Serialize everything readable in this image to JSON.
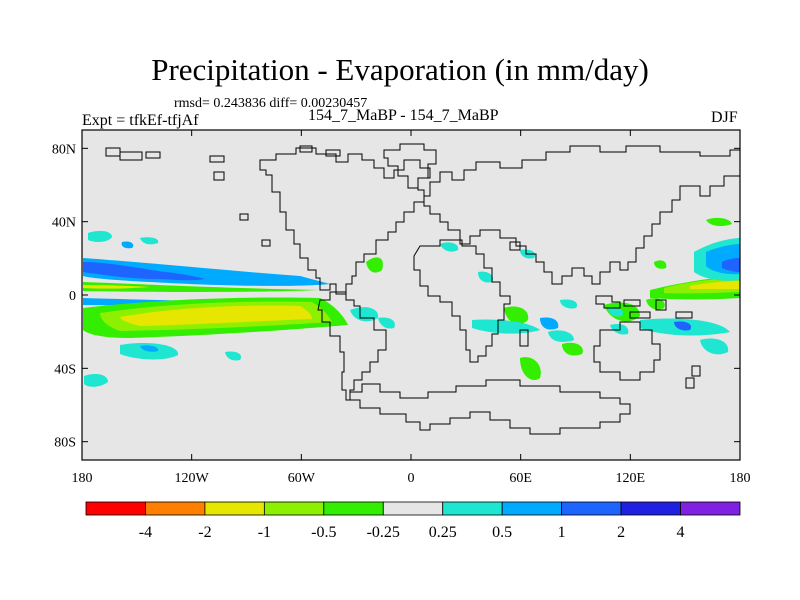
{
  "title": "Precipitation - Evaporation (in mm/day)",
  "stats": "rmsd= 0.243836 diff= 0.00230457",
  "experiment": "Expt = tfkEf-tfjAf",
  "runs": "154_7_MaBP - 154_7_MaBP",
  "season": "DJF",
  "map": {
    "background": "#e6e6e6",
    "projection": "cylindrical-equidistant",
    "lon_range": [
      -180,
      180
    ],
    "lat_range": [
      -90,
      90
    ],
    "x_ticks": [
      {
        "value": -180,
        "label": "180"
      },
      {
        "value": -120,
        "label": "120W"
      },
      {
        "value": -60,
        "label": "60W"
      },
      {
        "value": 0,
        "label": "0"
      },
      {
        "value": 60,
        "label": "60E"
      },
      {
        "value": 120,
        "label": "120E"
      },
      {
        "value": 180,
        "label": "180"
      }
    ],
    "y_ticks": [
      {
        "value": 80,
        "label": "80N"
      },
      {
        "value": 40,
        "label": "40N"
      },
      {
        "value": 0,
        "label": "0"
      },
      {
        "value": -40,
        "label": "40S"
      },
      {
        "value": -80,
        "label": "80S"
      }
    ]
  },
  "colorbar": {
    "colors": [
      "#ff0000",
      "#ff8000",
      "#e6e600",
      "#8cf000",
      "#33ee00",
      "#e6e6e6",
      "#1ee6d0",
      "#00aaff",
      "#1e64ff",
      "#2020e0",
      "#8020e0"
    ],
    "labels": [
      "-4",
      "-2",
      "-1",
      "-0.5",
      "-0.25",
      "0.25",
      "0.5",
      "1",
      "2",
      "4"
    ]
  }
}
